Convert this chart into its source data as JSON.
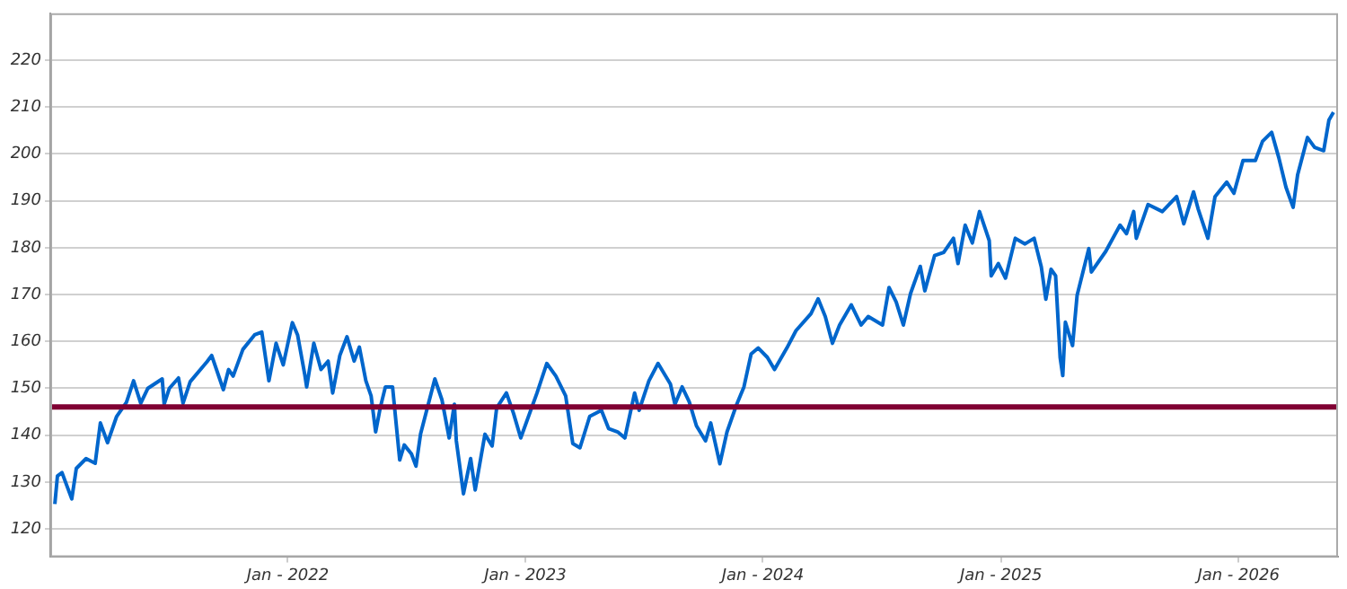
{
  "chart_data": {
    "type": "line",
    "x": [
      "2021-01-08",
      "2021-01-12",
      "2021-01-19",
      "2021-02-03",
      "2021-02-10",
      "2021-02-25",
      "2021-03-11",
      "2021-03-19",
      "2021-03-30",
      "2021-04-13",
      "2021-04-28",
      "2021-05-09",
      "2021-05-20",
      "2021-05-31",
      "2021-06-22",
      "2021-06-25",
      "2021-07-03",
      "2021-07-17",
      "2021-07-24",
      "2021-08-04",
      "2021-08-30",
      "2021-09-06",
      "2021-09-24",
      "2021-10-02",
      "2021-10-09",
      "2021-10-24",
      "2021-11-11",
      "2021-11-22",
      "2021-12-03",
      "2021-12-14",
      "2021-12-25",
      "2022-01-08",
      "2022-01-16",
      "2022-01-27",
      "2022-01-30",
      "2022-02-10",
      "2022-02-21",
      "2022-03-04",
      "2022-03-11",
      "2022-03-22",
      "2022-04-02",
      "2022-04-13",
      "2022-04-21",
      "2022-05-01",
      "2022-05-09",
      "2022-05-16",
      "2022-05-23",
      "2022-05-31",
      "2022-06-11",
      "2022-06-22",
      "2022-06-29",
      "2022-07-10",
      "2022-07-17",
      "2022-07-24",
      "2022-08-15",
      "2022-08-26",
      "2022-09-06",
      "2022-09-14",
      "2022-09-17",
      "2022-09-28",
      "2022-10-09",
      "2022-10-16",
      "2022-10-31",
      "2022-11-11",
      "2022-11-18",
      "2022-12-03",
      "2022-12-14",
      "2022-12-25",
      "2023-01-19",
      "2023-02-03",
      "2023-02-17",
      "2023-03-04",
      "2023-03-15",
      "2023-03-26",
      "2023-04-10",
      "2023-04-28",
      "2023-05-09",
      "2023-05-23",
      "2023-06-03",
      "2023-06-18",
      "2023-06-25",
      "2023-07-10",
      "2023-07-24",
      "2023-08-12",
      "2023-08-19",
      "2023-08-30",
      "2023-09-10",
      "2023-09-21",
      "2023-10-05",
      "2023-10-13",
      "2023-10-27",
      "2023-11-07",
      "2023-11-22",
      "2023-12-03",
      "2023-12-14",
      "2023-12-25",
      "2024-01-08",
      "2024-01-19",
      "2024-02-07",
      "2024-02-21",
      "2024-03-15",
      "2024-03-26",
      "2024-04-06",
      "2024-04-17",
      "2024-04-28",
      "2024-05-16",
      "2024-05-31",
      "2024-06-11",
      "2024-07-03",
      "2024-07-13",
      "2024-07-24",
      "2024-08-04",
      "2024-08-15",
      "2024-08-26",
      "2024-08-30",
      "2024-09-06",
      "2024-09-21",
      "2024-10-05",
      "2024-10-20",
      "2024-10-27",
      "2024-11-07",
      "2024-11-18",
      "2024-11-29",
      "2024-12-14",
      "2024-12-17",
      "2024-12-28",
      "2025-01-08",
      "2025-01-23",
      "2025-02-07",
      "2025-02-21",
      "2025-03-04",
      "2025-03-11",
      "2025-03-19",
      "2025-03-26",
      "2025-04-02",
      "2025-04-06",
      "2025-04-10",
      "2025-04-21",
      "2025-04-28",
      "2025-05-16",
      "2025-05-20",
      "2025-06-11",
      "2025-07-03",
      "2025-07-13",
      "2025-07-24",
      "2025-07-28",
      "2025-08-15",
      "2025-09-06",
      "2025-09-28",
      "2025-10-09",
      "2025-10-24",
      "2025-10-31",
      "2025-11-15",
      "2025-11-26",
      "2025-12-14",
      "2025-12-25",
      "2026-01-08",
      "2026-01-27",
      "2026-02-07",
      "2026-02-21",
      "2026-03-04",
      "2026-03-15",
      "2026-03-26",
      "2026-04-02",
      "2026-04-17",
      "2026-04-28",
      "2026-05-12",
      "2026-05-20",
      "2026-05-27"
    ],
    "series": [
      {
        "color": "#0066cc",
        "values": [
          125.3,
          131.3,
          132,
          126.4,
          132.9,
          135,
          134,
          142.6,
          138.4,
          144,
          147,
          151.6,
          146.8,
          150,
          152,
          146.6,
          150,
          152.2,
          146.8,
          151.4,
          155.7,
          157,
          149.7,
          154,
          152.6,
          158.3,
          161.4,
          162,
          151.6,
          159.6,
          155,
          164,
          161.4,
          153,
          150.3,
          159.6,
          154,
          155.8,
          149,
          157,
          161,
          155.8,
          158.8,
          151.6,
          148.4,
          140.7,
          145.8,
          150.3,
          150.3,
          134.7,
          137.9,
          136,
          133.4,
          140.2,
          152,
          147.5,
          139.4,
          146.6,
          138.8,
          127.5,
          135,
          128.3,
          140.2,
          137.7,
          145.8,
          149,
          144.6,
          139.4,
          149,
          155.3,
          152.6,
          148.4,
          138.2,
          137.3,
          144,
          145.3,
          141.4,
          140.7,
          139.4,
          149,
          145.3,
          151.6,
          155.3,
          150.9,
          146.6,
          150.3,
          147.1,
          142,
          138.8,
          142.6,
          133.9,
          140.7,
          146.6,
          150.3,
          157.3,
          158.6,
          156.6,
          154,
          158.6,
          162.3,
          165.9,
          169.1,
          165.3,
          159.6,
          163.5,
          167.8,
          163.5,
          165.3,
          163.5,
          171.5,
          168.4,
          163.5,
          170.2,
          174.5,
          176,
          170.8,
          178.3,
          179,
          182,
          176.6,
          184.8,
          181,
          187.7,
          181.5,
          174,
          176.6,
          173.5,
          182,
          180.8,
          182,
          175.9,
          169,
          175.4,
          174,
          156.5,
          152.7,
          164.1,
          159.1,
          169.8,
          179.8,
          174.8,
          179.2,
          184.8,
          183,
          187.7,
          182,
          189.2,
          187.7,
          190.9,
          185.1,
          191.9,
          188.3,
          182,
          190.9,
          194,
          191.6,
          198.6,
          198.6,
          202.7,
          204.6,
          199.2,
          192.9,
          188.6,
          195.6,
          203.5,
          201.4,
          200.7,
          207.2,
          208.9
        ]
      }
    ],
    "xlim": [
      "2021-01-01",
      "2026-06-03"
    ],
    "xticks": [
      {
        "value": "2022-01-01",
        "label": "Jan - 2022"
      },
      {
        "value": "2023-01-01",
        "label": "Jan - 2023"
      },
      {
        "value": "2024-01-01",
        "label": "Jan - 2024"
      },
      {
        "value": "2025-01-01",
        "label": "Jan - 2025"
      },
      {
        "value": "2026-01-01",
        "label": "Jan - 2026"
      }
    ],
    "ylim": [
      114,
      230
    ],
    "yticks": [
      120,
      130,
      140,
      150,
      160,
      170,
      180,
      190,
      200,
      210,
      220
    ],
    "grid": "y",
    "marker": "none",
    "ref_lines": [
      {
        "axis": "y",
        "value": 146,
        "color": "#800033"
      }
    ]
  }
}
